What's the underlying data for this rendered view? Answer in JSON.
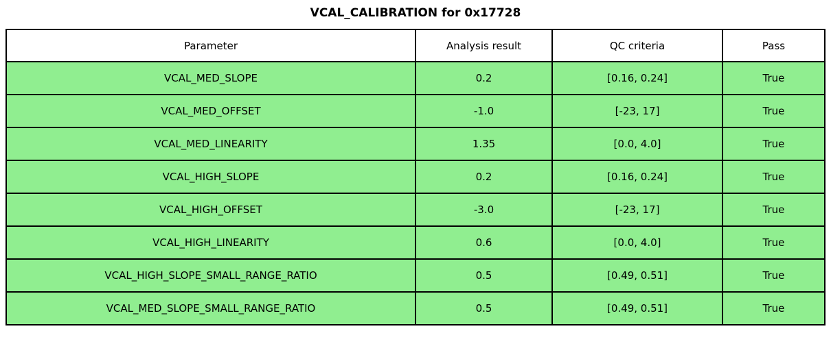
{
  "title": "VCAL_CALIBRATION for 0x17728",
  "colors": {
    "pass_row_bg": "#90EE90",
    "header_bg": "#ffffff",
    "border": "#000000",
    "text": "#000000"
  },
  "chart_data": {
    "type": "table",
    "title": "VCAL_CALIBRATION for 0x17728",
    "columns": [
      "Parameter",
      "Analysis result",
      "QC criteria",
      "Pass"
    ],
    "rows": [
      [
        "VCAL_MED_SLOPE",
        "0.2",
        "[0.16, 0.24]",
        "True"
      ],
      [
        "VCAL_MED_OFFSET",
        "-1.0",
        "[-23, 17]",
        "True"
      ],
      [
        "VCAL_MED_LINEARITY",
        "1.35",
        "[0.0, 4.0]",
        "True"
      ],
      [
        "VCAL_HIGH_SLOPE",
        "0.2",
        "[0.16, 0.24]",
        "True"
      ],
      [
        "VCAL_HIGH_OFFSET",
        "-3.0",
        "[-23, 17]",
        "True"
      ],
      [
        "VCAL_HIGH_LINEARITY",
        "0.6",
        "[0.0, 4.0]",
        "True"
      ],
      [
        "VCAL_HIGH_SLOPE_SMALL_RANGE_RATIO",
        "0.5",
        "[0.49, 0.51]",
        "True"
      ],
      [
        "VCAL_MED_SLOPE_SMALL_RANGE_RATIO",
        "0.5",
        "[0.49, 0.51]",
        "True"
      ]
    ],
    "layout_hints": {
      "pass_rows_highlighted": true,
      "header_row_plain": true,
      "all_cells_centered": true
    }
  }
}
